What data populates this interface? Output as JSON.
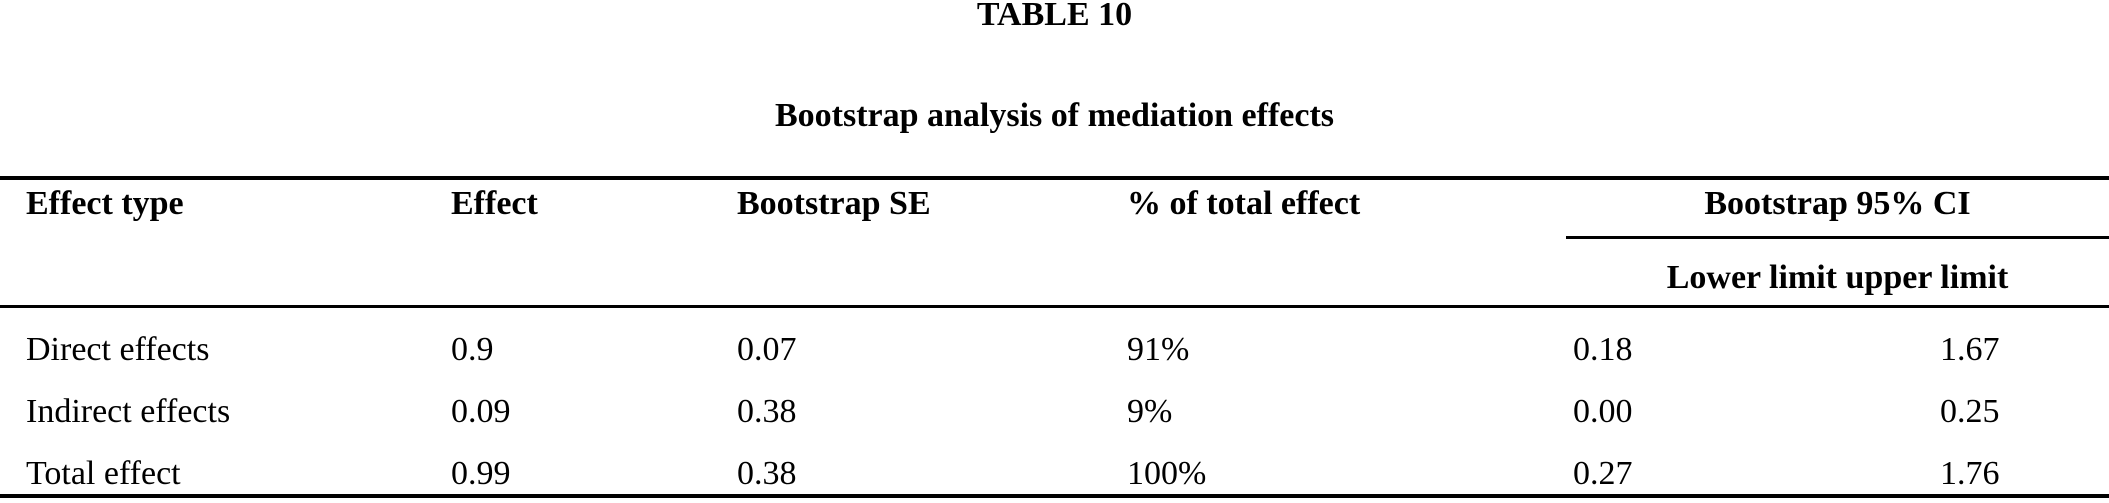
{
  "table_label": "TABLE 10",
  "caption": "Bootstrap analysis of mediation effects",
  "columns": {
    "effect_type": "Effect type",
    "effect": "Effect",
    "bootstrap_se": "Bootstrap SE",
    "pct_total": "% of total effect",
    "ci_group": "Bootstrap 95% CI",
    "ci_sub": "Lower limit upper limit"
  },
  "rows": [
    {
      "effect_type": "Direct effects",
      "effect": "0.9",
      "bootstrap_se": "0.07",
      "pct_total": "91%",
      "lower": "0.18",
      "upper": "1.67"
    },
    {
      "effect_type": "Indirect effects",
      "effect": "0.09",
      "bootstrap_se": "0.38",
      "pct_total": "9%",
      "lower": "0.00",
      "upper": "0.25"
    },
    {
      "effect_type": "Total effect",
      "effect": "0.99",
      "bootstrap_se": "0.38",
      "pct_total": "100%",
      "lower": "0.27",
      "upper": "1.76"
    }
  ],
  "colors": {
    "text": "#000000",
    "background": "#ffffff",
    "rule": "#000000"
  }
}
